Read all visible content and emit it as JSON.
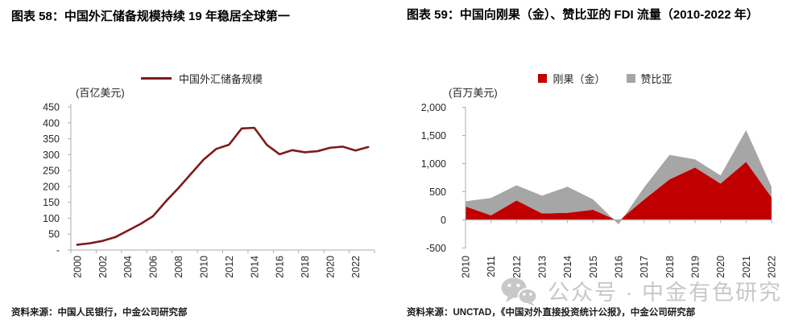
{
  "figure58": {
    "title": "图表 58：中国外汇储备规模持续 19 年稳居全球第一",
    "unit": "(百亿美元)",
    "source": "资料来源：中国人民银行，中金公司研究部"
  },
  "figure59": {
    "title": "图表 59：中国向刚果（金）、赞比亚的 FDI 流量（2010-2022 年）",
    "unit": "(百万美元)",
    "source": "资料来源：UNCTAD，《中国对外直接投资统计公报》，中金公司研究部"
  },
  "watermark": {
    "icon": "wechat-icon",
    "text": "公众号 · 中金有色研究",
    "color": "#C8C8C8"
  },
  "colors": {
    "fx_line": "#7F1A1A",
    "drc_red": "#C00000",
    "zambia_gray": "#A6A6A6",
    "axis_gray": "#ADADAD"
  },
  "chart_data": [
    {
      "type": "line",
      "title": "中国外汇储备规模持续 19 年稳居全球第一",
      "ylabel": "(百亿美元)",
      "xlabel": "",
      "ylim": [
        0,
        450
      ],
      "grid": false,
      "legend_position": "top",
      "x": [
        2000,
        2001,
        2002,
        2003,
        2004,
        2005,
        2006,
        2007,
        2008,
        2009,
        2010,
        2011,
        2012,
        2013,
        2014,
        2015,
        2016,
        2017,
        2018,
        2019,
        2020,
        2021,
        2022,
        2023
      ],
      "x_tick_labels": [
        "2000",
        "2002",
        "2004",
        "2006",
        "2008",
        "2010",
        "2012",
        "2014",
        "2016",
        "2018",
        "2020",
        "2022"
      ],
      "y_tick_labels": [
        "450",
        "400",
        "350",
        "300",
        "250",
        "200",
        "150",
        "100",
        "50",
        "-"
      ],
      "series": [
        {
          "name": "中国外汇储备规模",
          "color": "#7F1A1A",
          "values": [
            16.6,
            21.2,
            28.6,
            40.3,
            61.0,
            81.9,
            106.6,
            152.8,
            194.6,
            239.9,
            284.7,
            318.1,
            331.2,
            382.1,
            384.3,
            330.3,
            301.1,
            314.0,
            307.3,
            310.8,
            321.7,
            325.0,
            312.8,
            323.8
          ]
        }
      ]
    },
    {
      "type": "area",
      "stacked": true,
      "title": "中国向刚果（金）、赞比亚的 FDI 流量（2010-2022 年）",
      "ylabel": "(百万美元)",
      "xlabel": "",
      "ylim": [
        -500,
        2000
      ],
      "grid": false,
      "legend_position": "top",
      "x": [
        2010,
        2011,
        2012,
        2013,
        2014,
        2015,
        2016,
        2017,
        2018,
        2019,
        2020,
        2021,
        2022
      ],
      "x_tick_labels": [
        "2010",
        "2011",
        "2012",
        "2013",
        "2014",
        "2015",
        "2016",
        "2017",
        "2018",
        "2019",
        "2020",
        "2021",
        "2022"
      ],
      "y_tick_labels": [
        "2,000",
        "1,500",
        "1,000",
        "500",
        "0",
        "-500"
      ],
      "series": [
        {
          "name": "刚果（金）",
          "color": "#C00000",
          "values": [
            240,
            80,
            345,
            115,
            125,
            180,
            -20,
            360,
            720,
            930,
            645,
            1030,
            400
          ]
        },
        {
          "name": "赞比亚",
          "color": "#A6A6A6",
          "values": [
            90,
            310,
            270,
            315,
            465,
            185,
            -60,
            215,
            435,
            145,
            145,
            565,
            185
          ]
        }
      ]
    }
  ]
}
